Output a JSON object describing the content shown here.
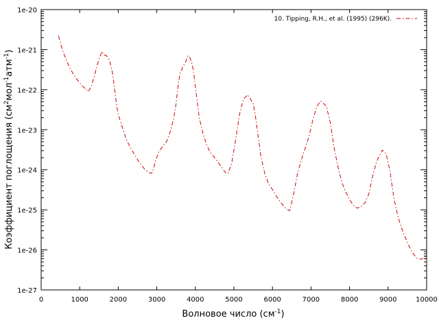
{
  "chart_data": {
    "type": "line",
    "xlabel": "Волновое число (см",
    "xlabel_sup": "-1",
    "xlabel_end": ")",
    "ylabel_parts": [
      "Коэффициент поглощения (см",
      "2",
      "мол",
      "-1",
      "атм",
      "-1",
      ")"
    ],
    "x_ticks": [
      "0",
      "1000",
      "2000",
      "3000",
      "4000",
      "5000",
      "6000",
      "7000",
      "8000",
      "9000",
      "10000"
    ],
    "y_ticks": [
      "1e-27",
      "1e-26",
      "1e-25",
      "1e-24",
      "1e-23",
      "1e-22",
      "1e-21",
      "1e-20"
    ],
    "xlim": [
      0,
      10000
    ],
    "ylim_exp": [
      -27,
      -20
    ],
    "y_scale": "log",
    "grid": false,
    "legend_position": "top-right",
    "series": [
      {
        "name": "10. Tipping, R.H., et al. (1995) (296K).",
        "color": "#cc0000",
        "line_style": "dash-dot",
        "points": [
          [
            450,
            2.2e-21
          ],
          [
            550,
            1e-21
          ],
          [
            650,
            5.5e-22
          ],
          [
            750,
            3.4e-22
          ],
          [
            850,
            2.3e-22
          ],
          [
            950,
            1.7e-22
          ],
          [
            1050,
            1.3e-22
          ],
          [
            1150,
            1.05e-22
          ],
          [
            1220,
            8.9e-23
          ],
          [
            1300,
            1.2e-22
          ],
          [
            1380,
            2.2e-22
          ],
          [
            1450,
            4e-22
          ],
          [
            1520,
            6.5e-22
          ],
          [
            1580,
            9e-22
          ],
          [
            1620,
            7.5e-22
          ],
          [
            1700,
            7e-22
          ],
          [
            1780,
            5.2e-22
          ],
          [
            1850,
            2.6e-22
          ],
          [
            1900,
            1.1e-22
          ],
          [
            1950,
            4.5e-23
          ],
          [
            2000,
            2.4e-23
          ],
          [
            2100,
            1.2e-23
          ],
          [
            2200,
            6e-24
          ],
          [
            2300,
            3.8e-24
          ],
          [
            2400,
            2.6e-24
          ],
          [
            2500,
            1.8e-24
          ],
          [
            2600,
            1.3e-24
          ],
          [
            2700,
            1e-24
          ],
          [
            2800,
            8.5e-25
          ],
          [
            2870,
            8.2e-25
          ],
          [
            2920,
            1.1e-24
          ],
          [
            2980,
            1.8e-24
          ],
          [
            3050,
            2.8e-24
          ],
          [
            3150,
            3.8e-24
          ],
          [
            3250,
            5e-24
          ],
          [
            3350,
            9e-24
          ],
          [
            3450,
            2.2e-23
          ],
          [
            3500,
            4.5e-23
          ],
          [
            3550,
            1.2e-22
          ],
          [
            3600,
            2.5e-22
          ],
          [
            3680,
            3.8e-22
          ],
          [
            3750,
            5e-22
          ],
          [
            3800,
            7e-22
          ],
          [
            3850,
            6.5e-22
          ],
          [
            3900,
            5e-22
          ],
          [
            3950,
            3e-22
          ],
          [
            4000,
            1.2e-22
          ],
          [
            4050,
            5e-23
          ],
          [
            4100,
            2e-23
          ],
          [
            4200,
            8e-24
          ],
          [
            4300,
            4e-24
          ],
          [
            4400,
            2.6e-24
          ],
          [
            4500,
            2e-24
          ],
          [
            4600,
            1.5e-24
          ],
          [
            4700,
            1.1e-24
          ],
          [
            4780,
            8.5e-25
          ],
          [
            4850,
            8e-25
          ],
          [
            4950,
            1.6e-24
          ],
          [
            5050,
            6e-24
          ],
          [
            5150,
            2.5e-23
          ],
          [
            5250,
            6e-23
          ],
          [
            5300,
            6.5e-23
          ],
          [
            5350,
            7.5e-23
          ],
          [
            5420,
            6e-23
          ],
          [
            5500,
            4.5e-23
          ],
          [
            5550,
            2.5e-23
          ],
          [
            5620,
            8e-24
          ],
          [
            5700,
            2.2e-24
          ],
          [
            5800,
            8e-25
          ],
          [
            5900,
            4.5e-25
          ],
          [
            6000,
            3.2e-25
          ],
          [
            6100,
            2.2e-25
          ],
          [
            6200,
            1.6e-25
          ],
          [
            6300,
            1.2e-25
          ],
          [
            6400,
            1e-25
          ],
          [
            6450,
            9.5e-26
          ],
          [
            6550,
            2.5e-25
          ],
          [
            6650,
            8e-25
          ],
          [
            6750,
            1.8e-24
          ],
          [
            6850,
            3.5e-24
          ],
          [
            6950,
            7e-24
          ],
          [
            7050,
            1.8e-23
          ],
          [
            7150,
            3.8e-23
          ],
          [
            7250,
            5.2e-23
          ],
          [
            7300,
            4.8e-23
          ],
          [
            7400,
            3.8e-23
          ],
          [
            7500,
            1.5e-23
          ],
          [
            7600,
            3.5e-24
          ],
          [
            7700,
            1.2e-24
          ],
          [
            7800,
            4.8e-25
          ],
          [
            7900,
            2.8e-25
          ],
          [
            8000,
            1.8e-25
          ],
          [
            8100,
            1.3e-25
          ],
          [
            8200,
            1.1e-25
          ],
          [
            8300,
            1.2e-25
          ],
          [
            8400,
            1.5e-25
          ],
          [
            8500,
            2.5e-25
          ],
          [
            8600,
            7e-25
          ],
          [
            8700,
            1.6e-24
          ],
          [
            8800,
            2.5e-24
          ],
          [
            8850,
            3.1e-24
          ],
          [
            8950,
            2.5e-24
          ],
          [
            9050,
            9e-25
          ],
          [
            9150,
            2e-25
          ],
          [
            9250,
            7e-26
          ],
          [
            9350,
            3.5e-26
          ],
          [
            9450,
            2e-26
          ],
          [
            9550,
            1.2e-26
          ],
          [
            9650,
            8e-27
          ],
          [
            9750,
            6.2e-27
          ],
          [
            9850,
            5.8e-27
          ],
          [
            10000,
            7e-27
          ]
        ]
      }
    ]
  }
}
